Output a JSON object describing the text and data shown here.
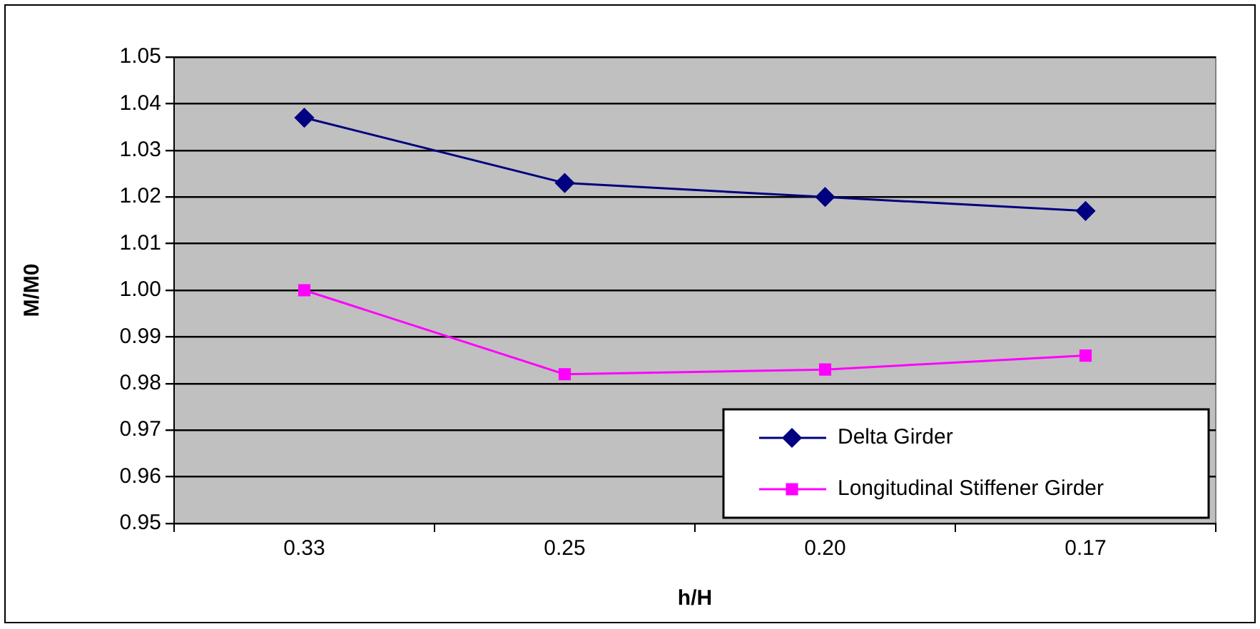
{
  "chart_data": {
    "type": "line",
    "xlabel": "h/H",
    "ylabel": "M/M0",
    "categories": [
      "0.33",
      "0.25",
      "0.20",
      "0.17"
    ],
    "series": [
      {
        "name": "Delta Girder",
        "color": "#000080",
        "marker": "diamond",
        "values": [
          1.037,
          1.023,
          1.02,
          1.017
        ]
      },
      {
        "name": "Longitudinal Stiffener Girder",
        "color": "#ff00ff",
        "marker": "square",
        "values": [
          1.0,
          0.982,
          0.983,
          0.986
        ]
      }
    ],
    "ylim": [
      0.95,
      1.05
    ],
    "yticks": [
      0.95,
      0.96,
      0.97,
      0.98,
      0.99,
      {
        "value": 1,
        "label": "1.00"
      },
      1.01,
      1.02,
      1.03,
      1.04,
      1.05
    ],
    "grid": "y",
    "legend": "bottom right",
    "line_style": "solid"
  }
}
